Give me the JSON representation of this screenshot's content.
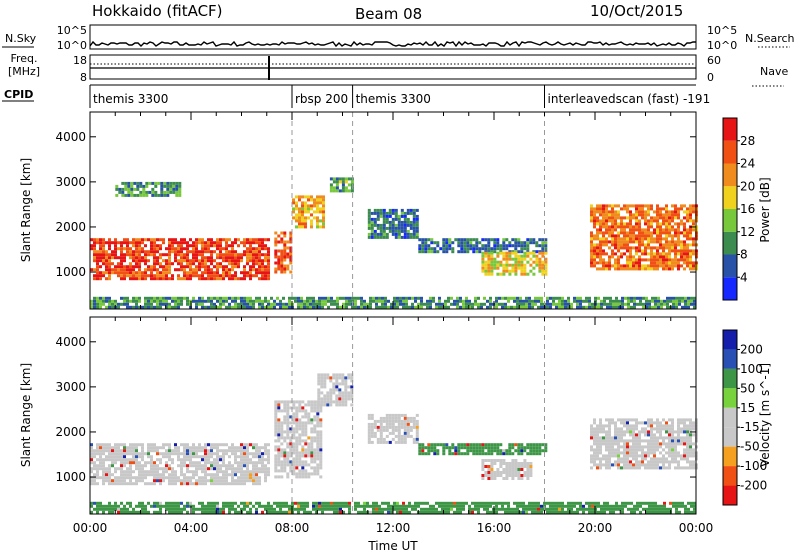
{
  "header": {
    "station": "Hokkaido (fitACF)",
    "beam": "Beam 08",
    "date": "10/Oct/2015"
  },
  "aux_panels": {
    "nsky_label": "N.Sky",
    "nsky_ticks": [
      "10^5",
      "10^0"
    ],
    "nsky_right_ticks": [
      "10^5",
      "10^0"
    ],
    "nsearch_label": "N.Search",
    "freq_label": "Freq.",
    "freq_unit": "[MHz]",
    "freq_ticks": [
      "18",
      "8"
    ],
    "nave_label": "Nave",
    "nave_ticks": [
      "60",
      "0"
    ],
    "cpid_label": "CPID",
    "cpid_segments": [
      {
        "label": "themis 3300",
        "start": 0.0
      },
      {
        "label": "rbsp 200",
        "start": 8.0
      },
      {
        "label": "themis 3300",
        "start": 10.4
      },
      {
        "label": "interleavedscan (fast) -191",
        "start": 18.0
      }
    ]
  },
  "colors": {
    "power_scale": [
      "#1428ff",
      "#2852a8",
      "#3c8c50",
      "#78c83c",
      "#f0d21e",
      "#f08c1e",
      "#f05014",
      "#e61414"
    ],
    "velocity_scale": [
      "#e61414",
      "#f05014",
      "#f5a01e",
      "#c8c8c8",
      "#c8c8c8",
      "#78d23c",
      "#3c9646",
      "#2850b4",
      "#141eaa"
    ]
  },
  "chart_data": [
    {
      "type": "heatmap",
      "name": "Power",
      "ylabel": "Slant Range [km]",
      "xlabel": "Time UT",
      "xticks": [
        "00:00",
        "04:00",
        "08:00",
        "12:00",
        "16:00",
        "20:00",
        "00:00"
      ],
      "xlim": [
        0,
        24
      ],
      "yticks": [
        1000,
        2000,
        3000,
        4000
      ],
      "ylim": [
        180,
        4550
      ],
      "colorbar_label": "Power [dB]",
      "colorbar_ticks": [
        4,
        8,
        12,
        16,
        20,
        24,
        28
      ],
      "colorbar_range": [
        0,
        32
      ],
      "regions": [
        {
          "t0": 0.0,
          "t1": 7.1,
          "r0": 850,
          "r1": 1750,
          "value": 27
        },
        {
          "t0": 1.0,
          "t1": 3.5,
          "r0": 2700,
          "r1": 3000,
          "value": 10
        },
        {
          "t0": 7.3,
          "t1": 8.0,
          "r0": 1000,
          "r1": 1900,
          "value": 26
        },
        {
          "t0": 8.0,
          "t1": 9.2,
          "r0": 2000,
          "r1": 2700,
          "value": 20
        },
        {
          "t0": 9.5,
          "t1": 10.4,
          "r0": 2800,
          "r1": 3100,
          "value": 12
        },
        {
          "t0": 11.0,
          "t1": 13.0,
          "r0": 1800,
          "r1": 2400,
          "value": 8
        },
        {
          "t0": 13.0,
          "t1": 18.0,
          "r0": 1450,
          "r1": 1750,
          "value": 8
        },
        {
          "t0": 15.5,
          "t1": 18.0,
          "r0": 950,
          "r1": 1450,
          "value": 18
        },
        {
          "t0": 19.8,
          "t1": 24.0,
          "r0": 1100,
          "r1": 2500,
          "value": 24
        },
        {
          "t0": 0.0,
          "t1": 24.0,
          "r0": 200,
          "r1": 450,
          "value": 10
        }
      ]
    },
    {
      "type": "heatmap",
      "name": "Velocity",
      "ylabel": "Slant Range [km]",
      "xlabel": "Time UT",
      "xticks": [
        "00:00",
        "04:00",
        "08:00",
        "12:00",
        "16:00",
        "20:00",
        "00:00"
      ],
      "xlim": [
        0,
        24
      ],
      "yticks": [
        1000,
        2000,
        3000,
        4000
      ],
      "ylim": [
        180,
        4550
      ],
      "colorbar_label": "Velocity [m s^-1]",
      "colorbar_ticks": [
        200,
        100,
        50,
        15,
        -15,
        -50,
        -100,
        -200
      ],
      "regions": [
        {
          "t0": 0.0,
          "t1": 7.1,
          "r0": 850,
          "r1": 1750,
          "value": 0
        },
        {
          "t0": 7.3,
          "t1": 9.2,
          "r0": 1000,
          "r1": 2700,
          "value": 0
        },
        {
          "t0": 9.0,
          "t1": 10.4,
          "r0": 2600,
          "r1": 3300,
          "value": 0
        },
        {
          "t0": 11.0,
          "t1": 13.0,
          "r0": 1800,
          "r1": 2400,
          "value": 0
        },
        {
          "t0": 13.0,
          "t1": 18.0,
          "r0": 1500,
          "r1": 1750,
          "value": 30
        },
        {
          "t0": 15.5,
          "t1": 17.5,
          "r0": 1000,
          "r1": 1400,
          "value": 0
        },
        {
          "t0": 19.8,
          "t1": 24.0,
          "r0": 1200,
          "r1": 2300,
          "value": 0
        },
        {
          "t0": 0.0,
          "t1": 24.0,
          "r0": 200,
          "r1": 450,
          "value": 30
        }
      ]
    }
  ]
}
